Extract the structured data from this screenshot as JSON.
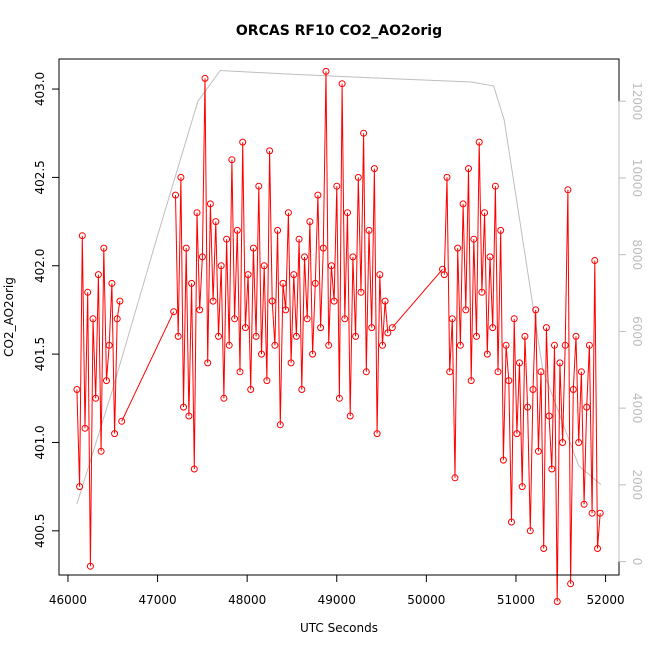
{
  "chart_data": {
    "type": "line",
    "title": "ORCAS RF10 CO2_AO2orig",
    "xlabel": "UTC Seconds",
    "ylabel": "CO2_AO2orig",
    "xlim": [
      45900,
      52150
    ],
    "ylim": [
      400.25,
      403.17
    ],
    "y2lim": [
      -350,
      13100
    ],
    "x_ticks": [
      "46000",
      "47000",
      "48000",
      "49000",
      "50000",
      "51000",
      "52000"
    ],
    "y_ticks": [
      "400.5",
      "401.0",
      "401.5",
      "402.0",
      "402.5",
      "403.0"
    ],
    "y2_ticks": [
      "0",
      "2000",
      "4000",
      "6000",
      "8000",
      "10000",
      "12000"
    ],
    "grid": false,
    "colors": {
      "primary": "#ff0000",
      "secondary": "#bebebe"
    },
    "series": [
      {
        "axis": "left",
        "style": "line+open-circle-markers",
        "segments": [
          {
            "x": [
              46100,
              46130,
              46160,
              46190,
              46220,
              46250,
              46280,
              46310,
              46340,
              46370,
              46400,
              46430,
              46460,
              46490,
              46520,
              46550,
              46580
            ],
            "y": [
              401.3,
              400.75,
              402.17,
              401.08,
              401.85,
              400.3,
              401.7,
              401.25,
              401.95,
              400.95,
              402.1,
              401.35,
              401.55,
              401.9,
              401.05,
              401.7,
              401.8
            ]
          },
          {
            "x": [
              46600,
              47180
            ],
            "y": [
              401.12,
              401.74
            ]
          },
          {
            "x": [
              47200,
              47230,
              47260,
              47290,
              47320,
              47350,
              47380,
              47410,
              47440,
              47470,
              47500,
              47530,
              47560,
              47590,
              47620,
              47650,
              47680,
              47710,
              47740,
              47770,
              47800,
              47830,
              47860,
              47890,
              47920,
              47950,
              47980,
              48010,
              48040,
              48070,
              48100,
              48130,
              48160,
              48190,
              48220,
              48250,
              48280,
              48310,
              48340,
              48370,
              48400,
              48430,
              48460,
              48490,
              48520,
              48550,
              48580,
              48610,
              48640,
              48670,
              48700,
              48730,
              48760,
              48790,
              48820,
              48850,
              48880,
              48910,
              48940,
              48970,
              49000,
              49030,
              49060,
              49090,
              49120,
              49150,
              49180,
              49210,
              49240,
              49270,
              49300,
              49330,
              49360,
              49390,
              49420,
              49450,
              49480,
              49510,
              49540,
              49570
            ],
            "y": [
              402.4,
              401.6,
              402.5,
              401.2,
              402.1,
              401.15,
              401.9,
              400.85,
              402.3,
              401.75,
              402.05,
              403.06,
              401.45,
              402.35,
              401.8,
              402.25,
              401.6,
              402.0,
              401.25,
              402.15,
              401.55,
              402.6,
              401.7,
              402.2,
              401.4,
              402.7,
              401.65,
              401.95,
              401.3,
              402.1,
              401.6,
              402.45,
              401.5,
              402.0,
              401.35,
              402.65,
              401.8,
              401.55,
              402.2,
              401.1,
              401.9,
              401.75,
              402.3,
              401.45,
              401.95,
              401.6,
              402.15,
              401.3,
              402.05,
              401.7,
              402.25,
              401.5,
              401.9,
              402.4,
              401.65,
              402.1,
              403.1,
              401.55,
              402.0,
              401.8,
              402.45,
              401.25,
              403.03,
              401.7,
              402.3,
              401.15,
              402.05,
              401.6,
              402.5,
              401.85,
              402.75,
              401.4,
              402.2,
              401.65,
              402.55,
              401.05,
              401.95,
              401.55,
              401.8,
              401.62
            ]
          },
          {
            "x": [
              49620,
              50180
            ],
            "y": [
              401.65,
              401.98
            ]
          },
          {
            "x": [
              50200,
              50230,
              50260,
              50290,
              50320,
              50350,
              50380,
              50410,
              50440,
              50470,
              50500,
              50530,
              50560,
              50590,
              50620,
              50650,
              50680,
              50710,
              50740,
              50770,
              50800,
              50830,
              50860,
              50890,
              50920,
              50950,
              50980,
              51010,
              51040,
              51070,
              51100,
              51130,
              51160,
              51190,
              51220,
              51250,
              51280,
              51310,
              51340,
              51370,
              51400,
              51430,
              51460,
              51490,
              51520,
              51550,
              51580,
              51610,
              51640,
              51670,
              51700,
              51730,
              51760,
              51790,
              51820,
              51850,
              51880,
              51910,
              51940
            ],
            "y": [
              401.95,
              402.5,
              401.4,
              401.7,
              400.8,
              402.1,
              401.55,
              402.35,
              401.75,
              402.55,
              401.35,
              402.15,
              401.6,
              402.7,
              401.85,
              402.3,
              401.5,
              402.05,
              401.65,
              402.45,
              401.4,
              402.2,
              400.9,
              401.55,
              401.35,
              400.55,
              401.7,
              401.05,
              401.45,
              400.75,
              401.6,
              401.2,
              400.5,
              401.3,
              401.75,
              400.95,
              401.4,
              400.4,
              401.65,
              401.15,
              400.85,
              401.55,
              400.1,
              401.45,
              401.0,
              401.55,
              402.43,
              400.2,
              401.3,
              401.6,
              401.0,
              401.4,
              400.65,
              401.2,
              401.55,
              400.6,
              402.03,
              400.4,
              400.6
            ]
          }
        ]
      },
      {
        "axis": "right",
        "style": "line",
        "x": [
          46100,
          46500,
          47000,
          47450,
          47700,
          48500,
          49500,
          50500,
          50750,
          50870,
          51300,
          51700,
          51950
        ],
        "y": [
          1500,
          4500,
          8500,
          12000,
          12800,
          12700,
          12600,
          12500,
          12400,
          11500,
          5000,
          2500,
          2000
        ]
      }
    ]
  }
}
